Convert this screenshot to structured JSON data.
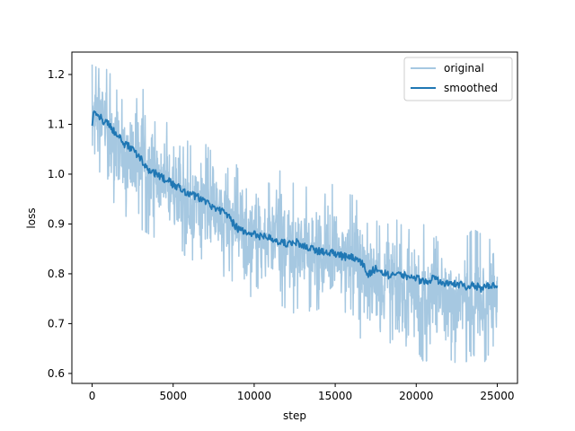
{
  "chart_data": {
    "type": "line",
    "title": "",
    "xlabel": "step",
    "ylabel": "loss",
    "xlim": [
      -1250,
      26250
    ],
    "ylim": [
      0.58,
      1.245
    ],
    "xticks": [
      0,
      5000,
      10000,
      15000,
      20000,
      25000
    ],
    "xtick_labels": [
      "0",
      "5000",
      "10000",
      "15000",
      "20000",
      "25000"
    ],
    "yticks": [
      0.6,
      0.7,
      0.8,
      0.9,
      1.0,
      1.1,
      1.2
    ],
    "ytick_labels": [
      "0.6",
      "0.7",
      "0.8",
      "0.9",
      "1.0",
      "1.1",
      "1.2"
    ],
    "grid": false,
    "legend_position": "upper right",
    "series": [
      {
        "name": "original",
        "color": "#a6c8e1",
        "x": [
          0,
          500,
          1000,
          1500,
          2000,
          2500,
          3000,
          3500,
          4000,
          4500,
          5000,
          5500,
          6000,
          6500,
          7000,
          7500,
          8000,
          8500,
          9000,
          9500,
          10000,
          10500,
          11000,
          11500,
          12000,
          12500,
          13000,
          13500,
          14000,
          14500,
          15000,
          15500,
          16000,
          16500,
          17000,
          17500,
          18000,
          18500,
          19000,
          19500,
          20000,
          20500,
          21000,
          21500,
          22000,
          22500,
          23000,
          23500,
          24000,
          24500,
          25000
        ],
        "upper": [
          1.22,
          1.21,
          1.21,
          1.17,
          1.14,
          1.16,
          1.19,
          1.12,
          1.1,
          1.11,
          1.08,
          1.09,
          1.06,
          1.04,
          1.06,
          1.04,
          1.02,
          1.06,
          1.01,
          1.0,
          1.04,
          0.99,
          0.98,
          1.01,
          0.99,
          0.98,
          0.97,
          0.98,
          0.96,
          0.96,
          0.99,
          0.95,
          0.96,
          0.94,
          0.9,
          0.91,
          0.88,
          0.92,
          0.9,
          0.89,
          0.88,
          0.9,
          0.87,
          0.88,
          0.88,
          0.86,
          0.87,
          0.89,
          0.88,
          0.87,
          0.86
        ],
        "lower": [
          1.06,
          1.0,
          0.97,
          0.93,
          0.92,
          0.83,
          0.89,
          0.88,
          0.87,
          0.85,
          0.84,
          0.85,
          0.82,
          0.84,
          0.82,
          0.83,
          0.8,
          0.78,
          0.8,
          0.72,
          0.78,
          0.76,
          0.77,
          0.74,
          0.73,
          0.72,
          0.75,
          0.72,
          0.73,
          0.71,
          0.7,
          0.72,
          0.73,
          0.67,
          0.68,
          0.65,
          0.63,
          0.67,
          0.64,
          0.66,
          0.65,
          0.62,
          0.64,
          0.65,
          0.63,
          0.62,
          0.62,
          0.64,
          0.61,
          0.64,
          0.67
        ]
      },
      {
        "name": "smoothed",
        "color": "#1f77b4",
        "x": [
          0,
          100,
          300,
          600,
          1000,
          1500,
          2000,
          2500,
          3000,
          3500,
          4000,
          4500,
          5000,
          5500,
          6000,
          6500,
          7000,
          7500,
          8000,
          8500,
          9000,
          9500,
          10000,
          10500,
          11000,
          11500,
          12000,
          12500,
          13000,
          13500,
          14000,
          14500,
          15000,
          15500,
          16000,
          16500,
          17000,
          17500,
          18000,
          18500,
          19000,
          19500,
          20000,
          20500,
          21000,
          21500,
          22000,
          22500,
          23000,
          23500,
          24000,
          24500,
          25000
        ],
        "values": [
          1.1,
          1.13,
          1.12,
          1.11,
          1.1,
          1.08,
          1.06,
          1.05,
          1.03,
          1.01,
          1.0,
          0.99,
          0.98,
          0.97,
          0.96,
          0.955,
          0.945,
          0.935,
          0.925,
          0.91,
          0.89,
          0.885,
          0.88,
          0.875,
          0.87,
          0.865,
          0.86,
          0.865,
          0.855,
          0.85,
          0.845,
          0.845,
          0.84,
          0.835,
          0.835,
          0.83,
          0.8,
          0.81,
          0.8,
          0.795,
          0.8,
          0.795,
          0.79,
          0.785,
          0.79,
          0.785,
          0.78,
          0.78,
          0.775,
          0.78,
          0.77,
          0.775,
          0.78
        ]
      }
    ]
  }
}
